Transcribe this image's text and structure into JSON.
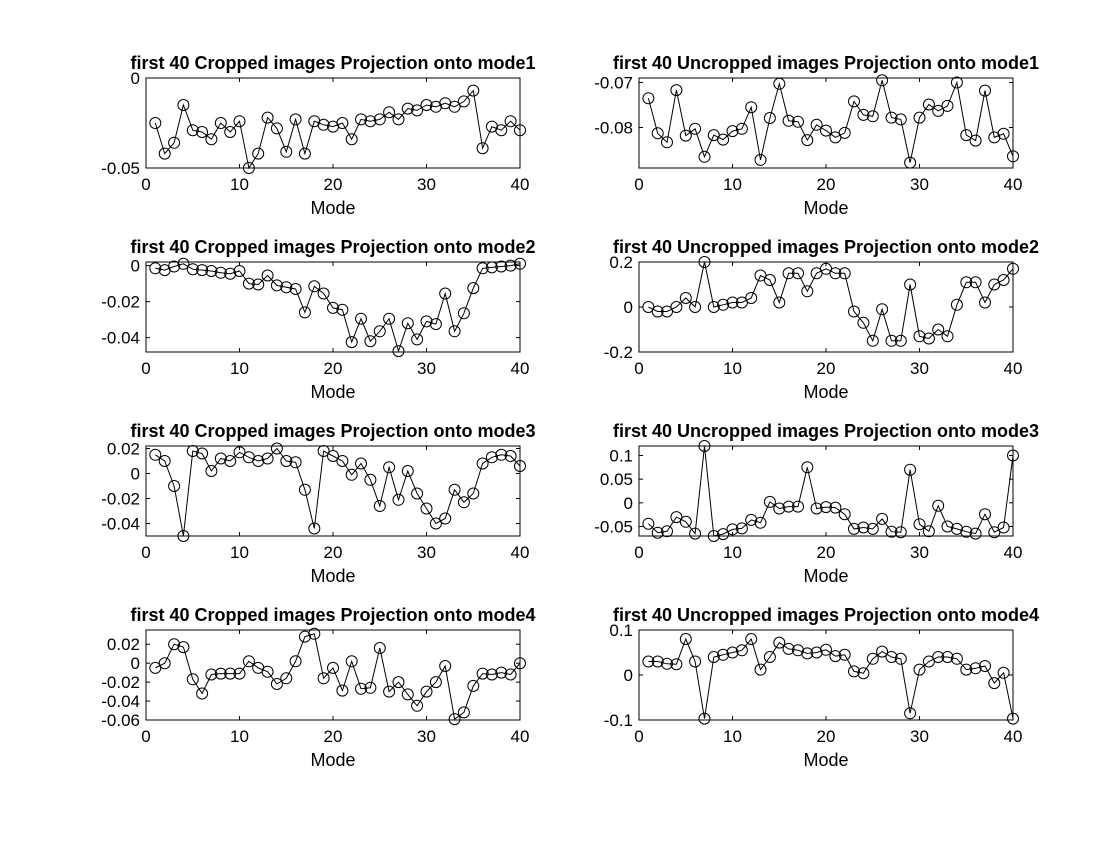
{
  "figure": {
    "background": "#ffffff",
    "line_color": "#000000",
    "marker": "open-circle"
  },
  "chart_data": [
    {
      "type": "line",
      "title": "first 40 Cropped images Projection onto mode1",
      "xlabel": "Mode",
      "ylabel": "",
      "xlim": [
        0,
        40
      ],
      "ylim": [
        -0.05,
        0
      ],
      "xticks": [
        0,
        10,
        20,
        30,
        40
      ],
      "yticks": [
        {
          "v": 0,
          "t": "0"
        },
        {
          "v": -0.05,
          "t": "-0.05"
        }
      ],
      "x": [
        1,
        2,
        3,
        4,
        5,
        6,
        7,
        8,
        9,
        10,
        11,
        12,
        13,
        14,
        15,
        16,
        17,
        18,
        19,
        20,
        21,
        22,
        23,
        24,
        25,
        26,
        27,
        28,
        29,
        30,
        31,
        32,
        33,
        34,
        35,
        36,
        37,
        38,
        39,
        40
      ],
      "series": [
        {
          "values": [
            -0.025,
            -0.042,
            -0.036,
            -0.015,
            -0.029,
            -0.03,
            -0.034,
            -0.025,
            -0.03,
            -0.024,
            -0.05,
            -0.042,
            -0.022,
            -0.028,
            -0.041,
            -0.023,
            -0.042,
            -0.024,
            -0.026,
            -0.027,
            -0.025,
            -0.034,
            -0.023,
            -0.024,
            -0.023,
            -0.019,
            -0.023,
            -0.017,
            -0.018,
            -0.015,
            -0.016,
            -0.014,
            -0.016,
            -0.013,
            -0.007,
            -0.039,
            -0.027,
            -0.029,
            -0.024,
            -0.029
          ]
        }
      ]
    },
    {
      "type": "line",
      "title": "first 40 Uncropped images Projection onto mode1",
      "xlabel": "Mode",
      "ylabel": "",
      "xlim": [
        0,
        40
      ],
      "ylim": [
        -0.089,
        -0.069
      ],
      "xticks": [
        0,
        10,
        20,
        30,
        40
      ],
      "yticks": [
        {
          "v": -0.07,
          "t": "-0.07"
        },
        {
          "v": -0.08,
          "t": "-0.08"
        }
      ],
      "x": [
        1,
        2,
        3,
        4,
        5,
        6,
        7,
        8,
        9,
        10,
        11,
        12,
        13,
        14,
        15,
        16,
        17,
        18,
        19,
        20,
        21,
        22,
        23,
        24,
        25,
        26,
        27,
        28,
        29,
        30,
        31,
        32,
        33,
        34,
        35,
        36,
        37,
        38,
        39,
        40
      ],
      "series": [
        {
          "values": [
            -0.0735,
            -0.0813,
            -0.0833,
            -0.0717,
            -0.0818,
            -0.0803,
            -0.0865,
            -0.0817,
            -0.0827,
            -0.0808,
            -0.0803,
            -0.0755,
            -0.0872,
            -0.0779,
            -0.0703,
            -0.0785,
            -0.0787,
            -0.0828,
            -0.0794,
            -0.0807,
            -0.0822,
            -0.0812,
            -0.0742,
            -0.0772,
            -0.0775,
            -0.0695,
            -0.0778,
            -0.0782,
            -0.0878,
            -0.0778,
            -0.0749,
            -0.0763,
            -0.0752,
            -0.07,
            -0.0817,
            -0.0829,
            -0.0718,
            -0.0822,
            -0.0814,
            -0.0864
          ]
        }
      ]
    },
    {
      "type": "line",
      "title": "first 40 Cropped images Projection onto mode2",
      "xlabel": "Mode",
      "ylabel": "",
      "xlim": [
        0,
        40
      ],
      "ylim": [
        -0.048,
        0.002
      ],
      "xticks": [
        0,
        10,
        20,
        30,
        40
      ],
      "yticks": [
        {
          "v": 0,
          "t": "0"
        },
        {
          "v": -0.02,
          "t": "-0.02"
        },
        {
          "v": -0.04,
          "t": "-0.04"
        }
      ],
      "x": [
        1,
        2,
        3,
        4,
        5,
        6,
        7,
        8,
        9,
        10,
        11,
        12,
        13,
        14,
        15,
        16,
        17,
        18,
        19,
        20,
        21,
        22,
        23,
        24,
        25,
        26,
        27,
        28,
        29,
        30,
        31,
        32,
        33,
        34,
        35,
        36,
        37,
        38,
        39,
        40
      ],
      "series": [
        {
          "values": [
            -0.0015,
            -0.0025,
            -0.0005,
            0.001,
            -0.002,
            -0.0025,
            -0.003,
            -0.004,
            -0.0045,
            -0.003,
            -0.01,
            -0.0105,
            -0.0055,
            -0.011,
            -0.012,
            -0.013,
            -0.026,
            -0.0115,
            -0.0155,
            -0.0235,
            -0.0245,
            -0.0425,
            -0.0295,
            -0.042,
            -0.0365,
            -0.0295,
            -0.0475,
            -0.032,
            -0.041,
            -0.031,
            -0.0325,
            -0.0155,
            -0.0365,
            -0.0265,
            -0.0125,
            -0.0015,
            -0.001,
            -0.0005,
            0,
            0.001
          ]
        }
      ]
    },
    {
      "type": "line",
      "title": "first 40 Uncropped images Projection onto mode2",
      "xlabel": "Mode",
      "ylabel": "",
      "xlim": [
        0,
        40
      ],
      "ylim": [
        -0.2,
        0.2
      ],
      "xticks": [
        0,
        10,
        20,
        30,
        40
      ],
      "yticks": [
        {
          "v": 0.2,
          "t": "0.2"
        },
        {
          "v": 0,
          "t": "0"
        },
        {
          "v": -0.2,
          "t": "-0.2"
        }
      ],
      "x": [
        1,
        2,
        3,
        4,
        5,
        6,
        7,
        8,
        9,
        10,
        11,
        12,
        13,
        14,
        15,
        16,
        17,
        18,
        19,
        20,
        21,
        22,
        23,
        24,
        25,
        26,
        27,
        28,
        29,
        30,
        31,
        32,
        33,
        34,
        35,
        36,
        37,
        38,
        39,
        40
      ],
      "series": [
        {
          "values": [
            0,
            -0.02,
            -0.02,
            0,
            0.04,
            0,
            0.2,
            0,
            0.01,
            0.02,
            0.02,
            0.04,
            0.14,
            0.12,
            0.02,
            0.15,
            0.15,
            0.07,
            0.15,
            0.17,
            0.15,
            0.15,
            -0.02,
            -0.07,
            -0.15,
            -0.01,
            -0.15,
            -0.15,
            0.1,
            -0.13,
            -0.14,
            -0.1,
            -0.13,
            0.01,
            0.11,
            0.11,
            0.02,
            0.1,
            0.12,
            0.17
          ]
        }
      ]
    },
    {
      "type": "line",
      "title": "first 40 Cropped images Projection onto mode3",
      "xlabel": "Mode",
      "ylabel": "",
      "xlim": [
        0,
        40
      ],
      "ylim": [
        -0.05,
        0.022
      ],
      "xticks": [
        0,
        10,
        20,
        30,
        40
      ],
      "yticks": [
        {
          "v": 0.02,
          "t": "0.02"
        },
        {
          "v": 0,
          "t": "0"
        },
        {
          "v": -0.02,
          "t": "-0.02"
        },
        {
          "v": -0.04,
          "t": "-0.04"
        }
      ],
      "x": [
        1,
        2,
        3,
        4,
        5,
        6,
        7,
        8,
        9,
        10,
        11,
        12,
        13,
        14,
        15,
        16,
        17,
        18,
        19,
        20,
        21,
        22,
        23,
        24,
        25,
        26,
        27,
        28,
        29,
        30,
        31,
        32,
        33,
        34,
        35,
        36,
        37,
        38,
        39,
        40
      ],
      "series": [
        {
          "values": [
            0.015,
            0.01,
            -0.01,
            -0.05,
            0.018,
            0.016,
            0.002,
            0.012,
            0.01,
            0.017,
            0.013,
            0.01,
            0.012,
            0.02,
            0.01,
            0.009,
            -0.013,
            -0.044,
            0.018,
            0.014,
            0.01,
            -0.001,
            0.008,
            -0.005,
            -0.026,
            0.005,
            -0.021,
            0.002,
            -0.016,
            -0.028,
            -0.04,
            -0.036,
            -0.013,
            -0.023,
            -0.016,
            0.008,
            0.013,
            0.015,
            0.014,
            0.006
          ]
        }
      ]
    },
    {
      "type": "line",
      "title": "first 40 Uncropped images Projection onto mode3",
      "xlabel": "Mode",
      "ylabel": "",
      "xlim": [
        0,
        40
      ],
      "ylim": [
        -0.07,
        0.12
      ],
      "xticks": [
        0,
        10,
        20,
        30,
        40
      ],
      "yticks": [
        {
          "v": 0.1,
          "t": "0.1"
        },
        {
          "v": 0.05,
          "t": "0.05"
        },
        {
          "v": 0,
          "t": "0"
        },
        {
          "v": -0.05,
          "t": "-0.05"
        }
      ],
      "x": [
        1,
        2,
        3,
        4,
        5,
        6,
        7,
        8,
        9,
        10,
        11,
        12,
        13,
        14,
        15,
        16,
        17,
        18,
        19,
        20,
        21,
        22,
        23,
        24,
        25,
        26,
        27,
        28,
        29,
        30,
        31,
        32,
        33,
        34,
        35,
        36,
        37,
        38,
        39,
        40
      ],
      "series": [
        {
          "values": [
            -0.044,
            -0.063,
            -0.06,
            -0.03,
            -0.04,
            -0.065,
            0.12,
            -0.07,
            -0.066,
            -0.056,
            -0.054,
            -0.036,
            -0.042,
            0.002,
            -0.012,
            -0.008,
            -0.008,
            0.075,
            -0.012,
            -0.009,
            -0.01,
            -0.024,
            -0.055,
            -0.052,
            -0.055,
            -0.034,
            -0.061,
            -0.062,
            0.07,
            -0.045,
            -0.06,
            -0.006,
            -0.05,
            -0.055,
            -0.061,
            -0.065,
            -0.024,
            -0.062,
            -0.052,
            0.1
          ]
        }
      ]
    },
    {
      "type": "line",
      "title": "first 40 Cropped images Projection onto mode4",
      "xlabel": "Mode",
      "ylabel": "",
      "xlim": [
        0,
        40
      ],
      "ylim": [
        -0.06,
        0.035
      ],
      "xticks": [
        0,
        10,
        20,
        30,
        40
      ],
      "yticks": [
        {
          "v": 0.02,
          "t": "0.02"
        },
        {
          "v": 0,
          "t": "0"
        },
        {
          "v": -0.02,
          "t": "-0.02"
        },
        {
          "v": -0.04,
          "t": "-0.04"
        },
        {
          "v": -0.06,
          "t": "-0.06"
        }
      ],
      "x": [
        1,
        2,
        3,
        4,
        5,
        6,
        7,
        8,
        9,
        10,
        11,
        12,
        13,
        14,
        15,
        16,
        17,
        18,
        19,
        20,
        21,
        22,
        23,
        24,
        25,
        26,
        27,
        28,
        29,
        30,
        31,
        32,
        33,
        34,
        35,
        36,
        37,
        38,
        39,
        40
      ],
      "series": [
        {
          "values": [
            -0.005,
            0,
            0.02,
            0.017,
            -0.017,
            -0.032,
            -0.012,
            -0.011,
            -0.011,
            -0.011,
            0.002,
            -0.005,
            -0.009,
            -0.022,
            -0.016,
            0.002,
            0.028,
            0.031,
            -0.016,
            -0.005,
            -0.029,
            0.002,
            -0.027,
            -0.026,
            0.016,
            -0.03,
            -0.02,
            -0.033,
            -0.045,
            -0.03,
            -0.02,
            -0.003,
            -0.059,
            -0.052,
            -0.024,
            -0.011,
            -0.012,
            -0.01,
            -0.012,
            0
          ]
        }
      ]
    },
    {
      "type": "line",
      "title": "first 40 Uncropped images Projection onto mode4",
      "xlabel": "Mode",
      "ylabel": "",
      "xlim": [
        0,
        40
      ],
      "ylim": [
        -0.1,
        0.1
      ],
      "xticks": [
        0,
        10,
        20,
        30,
        40
      ],
      "yticks": [
        {
          "v": 0.1,
          "t": "0.1"
        },
        {
          "v": 0,
          "t": "0"
        },
        {
          "v": -0.1,
          "t": "-0.1"
        }
      ],
      "x": [
        1,
        2,
        3,
        4,
        5,
        6,
        7,
        8,
        9,
        10,
        11,
        12,
        13,
        14,
        15,
        16,
        17,
        18,
        19,
        20,
        21,
        22,
        23,
        24,
        25,
        26,
        27,
        28,
        29,
        30,
        31,
        32,
        33,
        34,
        35,
        36,
        37,
        38,
        39,
        40
      ],
      "series": [
        {
          "values": [
            0.03,
            0.03,
            0.025,
            0.024,
            0.08,
            0.03,
            -0.097,
            0.04,
            0.045,
            0.05,
            0.055,
            0.08,
            0.012,
            0.04,
            0.072,
            0.058,
            0.055,
            0.048,
            0.05,
            0.056,
            0.042,
            0.045,
            0.008,
            0.004,
            0.036,
            0.052,
            0.04,
            0.036,
            -0.085,
            0.012,
            0.03,
            0.04,
            0.04,
            0.036,
            0.012,
            0.015,
            0.02,
            -0.018,
            0.005,
            -0.097
          ]
        }
      ]
    }
  ]
}
